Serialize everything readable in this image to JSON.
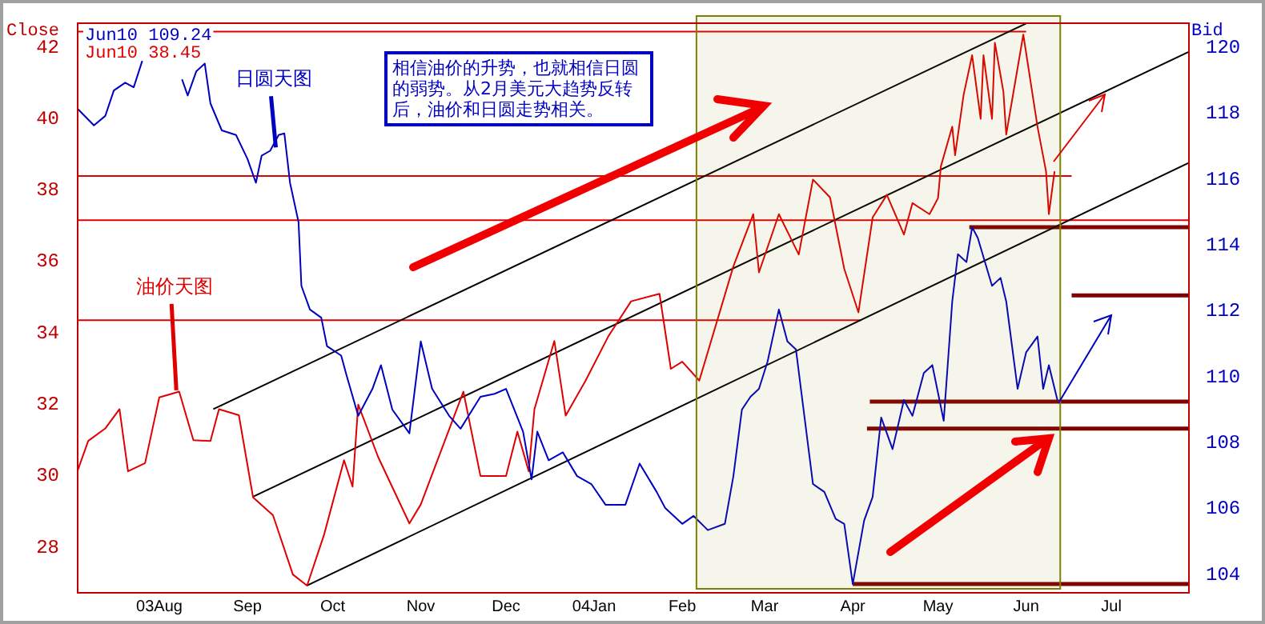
{
  "chart_data": {
    "type": "line",
    "ylabel": "Close",
    "y2label": "Bid",
    "legend": "top left",
    "xlim": [
      "2003-07-03",
      "2004-07-28"
    ],
    "xticks": [
      {
        "value": "2003-08-01",
        "label": "03Aug"
      },
      {
        "value": "2003-09-01",
        "label": "Sep"
      },
      {
        "value": "2003-10-01",
        "label": "Oct"
      },
      {
        "value": "2003-11-01",
        "label": "Nov"
      },
      {
        "value": "2003-12-01",
        "label": "Dec"
      },
      {
        "value": "2004-01-01",
        "label": "04Jan"
      },
      {
        "value": "2004-02-01",
        "label": "Feb"
      },
      {
        "value": "2004-03-01",
        "label": "Mar"
      },
      {
        "value": "2004-04-01",
        "label": "Apr"
      },
      {
        "value": "2004-05-01",
        "label": "May"
      },
      {
        "value": "2004-06-01",
        "label": "Jun"
      },
      {
        "value": "2004-07-01",
        "label": "Jul"
      }
    ],
    "ylim": [
      26.75,
      42.7
    ],
    "yticks": [
      28,
      30,
      32,
      34,
      36,
      38,
      40,
      42
    ],
    "y2lim": [
      103.47,
      120.77
    ],
    "y2ticks": [
      104,
      106,
      108,
      110,
      112,
      114,
      116,
      118,
      120
    ],
    "bands": [
      {
        "axis": "x",
        "from": "2004-02-06",
        "to": "2004-06-13",
        "color": "#808000"
      }
    ],
    "annotations": [
      {
        "text": "日圆天图",
        "x": "2003-09-11",
        "y": 39.2
      },
      {
        "text": "油价天图",
        "x": "2003-08-07",
        "y": 32.4
      },
      "相信油价的升势，也就相信日圆的弱势。从2月美元大趋势反转后，油价和日圆走势相关。"
    ],
    "series": [
      {
        "name": "Jun10 109.24",
        "color": "#0000c0",
        "axis": "y2",
        "x": [
          "2003-07-03",
          "2003-07-09",
          "2003-07-13",
          "2003-07-16",
          "2003-07-20",
          "2003-07-23",
          "2003-07-26",
          "2003-07-30",
          "2003-08-06",
          "2003-08-09",
          "2003-08-11",
          "2003-08-14",
          "2003-08-17",
          "2003-08-19",
          "2003-08-23",
          "2003-08-28",
          "2003-09-01",
          "2003-09-04",
          "2003-09-06",
          "2003-09-09",
          "2003-09-12",
          "2003-09-14",
          "2003-09-16",
          "2003-09-19",
          "2003-09-20",
          "2003-09-23",
          "2003-09-27",
          "2003-09-29",
          "2003-10-04",
          "2003-10-06",
          "2003-10-10",
          "2003-10-15",
          "2003-10-18",
          "2003-10-22",
          "2003-10-28",
          "2003-11-01",
          "2003-11-05",
          "2003-11-11",
          "2003-11-15",
          "2003-11-22",
          "2003-11-27",
          "2003-12-01",
          "2003-12-07",
          "2003-12-10",
          "2003-12-12",
          "2003-12-16",
          "2003-12-21",
          "2003-12-26",
          "2003-12-31",
          "2004-01-05",
          "2004-01-12",
          "2004-01-17",
          "2004-01-23",
          "2004-01-26",
          "2004-02-01",
          "2004-02-05",
          "2004-02-10",
          "2004-02-16",
          "2004-02-19",
          "2004-02-22",
          "2004-02-25",
          "2004-02-28",
          "2004-03-02",
          "2004-03-06",
          "2004-03-09",
          "2004-03-12",
          "2004-03-18",
          "2004-03-22",
          "2004-03-26",
          "2004-03-29",
          "2004-04-01",
          "2004-04-05",
          "2004-04-08",
          "2004-04-11",
          "2004-04-15",
          "2004-04-19",
          "2004-04-22",
          "2004-04-26",
          "2004-04-29",
          "2004-05-03",
          "2004-05-06",
          "2004-05-08",
          "2004-05-11",
          "2004-05-13",
          "2004-05-15",
          "2004-05-20",
          "2004-05-23",
          "2004-05-25",
          "2004-05-29",
          "2004-06-01",
          "2004-06-05",
          "2004-06-07",
          "2004-06-09",
          "2004-06-12"
        ],
        "values": [
          118.17,
          117.64,
          117.93,
          118.7,
          118.94,
          118.8,
          119.6,
          null,
          null,
          119.04,
          118.55,
          119.28,
          119.52,
          118.31,
          117.49,
          117.35,
          116.63,
          115.9,
          116.72,
          116.87,
          117.35,
          117.4,
          115.9,
          114.7,
          112.77,
          112.05,
          111.8,
          110.94,
          110.65,
          110.02,
          108.82,
          109.64,
          110.36,
          109.01,
          108.29,
          111.08,
          109.64,
          108.82,
          108.43,
          109.4,
          109.49,
          109.64,
          108.34,
          106.89,
          108.34,
          107.47,
          107.71,
          106.99,
          106.75,
          106.12,
          106.12,
          107.37,
          106.51,
          106.02,
          105.54,
          105.78,
          105.35,
          105.54,
          106.99,
          109.01,
          109.4,
          109.64,
          110.46,
          112.05,
          111.08,
          110.84,
          106.75,
          106.51,
          105.69,
          105.54,
          103.71,
          105.64,
          106.36,
          108.77,
          107.81,
          109.3,
          108.82,
          110.12,
          110.36,
          108.67,
          112.29,
          113.73,
          113.49,
          114.55,
          114.22,
          112.77,
          113.01,
          112.29,
          109.64,
          110.75,
          111.23,
          109.64,
          110.36,
          109.3
        ]
      },
      {
        "name": "Jun10 38.45",
        "color": "#e00000",
        "x": [
          "2003-07-03",
          "2003-07-07",
          "2003-07-13",
          "2003-07-18",
          "2003-07-21",
          "2003-07-27",
          "2003-08-01",
          "2003-08-08",
          "2003-08-13",
          "2003-08-19",
          "2003-08-22",
          "2003-08-29",
          "2003-09-03",
          "2003-09-10",
          "2003-09-17",
          "2003-09-22",
          "2003-09-28",
          "2003-10-05",
          "2003-10-08",
          "2003-10-10",
          "2003-10-17",
          "2003-10-28",
          "2003-11-01",
          "2003-11-16",
          "2003-11-22",
          "2003-12-01",
          "2003-12-05",
          "2003-12-09",
          "2003-12-11",
          "2003-12-18",
          "2003-12-22",
          "2003-12-29",
          "2004-01-06",
          "2004-01-14",
          "2004-01-24",
          "2004-01-28",
          "2004-02-01",
          "2004-02-07",
          "2004-02-19",
          "2004-02-26",
          "2004-02-28",
          "2004-03-06",
          "2004-03-13",
          "2004-03-18",
          "2004-03-24",
          "2004-03-29",
          "2004-04-03",
          "2004-04-08",
          "2004-04-13",
          "2004-04-19",
          "2004-04-22",
          "2004-04-28",
          "2004-05-01",
          "2004-05-02",
          "2004-05-06",
          "2004-05-07",
          "2004-05-10",
          "2004-05-13",
          "2004-05-16",
          "2004-05-17",
          "2004-05-20",
          "2004-05-21",
          "2004-05-24",
          "2004-05-25",
          "2004-05-31",
          "2004-06-05",
          "2004-06-08",
          "2004-06-09",
          "2004-06-11"
        ],
        "values": [
          30.09,
          30.98,
          31.33,
          31.87,
          30.13,
          30.36,
          32.2,
          32.36,
          31.0,
          30.98,
          31.87,
          31.7,
          29.4,
          28.9,
          27.24,
          26.93,
          28.36,
          30.44,
          29.7,
          32.0,
          30.53,
          28.67,
          29.2,
          32.36,
          30.0,
          30.0,
          31.24,
          30.13,
          31.87,
          33.78,
          31.69,
          32.67,
          33.91,
          34.89,
          35.1,
          33.0,
          33.2,
          32.67,
          35.87,
          37.33,
          35.7,
          37.33,
          36.2,
          38.3,
          37.8,
          35.8,
          34.58,
          37.24,
          37.87,
          36.76,
          37.64,
          37.33,
          37.78,
          38.67,
          39.78,
          38.98,
          40.67,
          41.78,
          40.0,
          41.78,
          40.0,
          42.13,
          40.76,
          39.56,
          42.36,
          39.78,
          38.53,
          37.33,
          38.53
        ]
      },
      {
        "color": "#000000",
        "x": [
          "2003-09-22",
          "2004-07-28"
        ],
        "values": [
          26.93,
          38.76
        ]
      },
      {
        "color": "#000000",
        "x": [
          "2003-09-03",
          "2004-07-28"
        ],
        "values": [
          29.42,
          41.87
        ]
      },
      {
        "color": "#000000",
        "x": [
          "2003-08-20",
          "2004-06-01"
        ],
        "values": [
          31.87,
          42.67
        ]
      },
      {
        "color": "#e00000",
        "x": [
          "2003-07-03",
          "2004-06-01"
        ],
        "values": [
          42.44,
          42.44
        ]
      },
      {
        "color": "#e00000",
        "x": [
          "2003-07-03",
          "2004-06-17"
        ],
        "values": [
          38.4,
          38.4
        ]
      },
      {
        "color": "#e00000",
        "x": [
          "2003-07-03",
          "2004-07-28"
        ],
        "values": [
          37.16,
          37.16
        ]
      },
      {
        "color": "#e00000",
        "x": [
          "2003-07-03",
          "2004-04-04"
        ],
        "values": [
          34.36,
          34.36
        ]
      },
      {
        "color": "#800000",
        "axis": "y2",
        "x": [
          "2004-05-12",
          "2004-07-28"
        ],
        "values": [
          114.55,
          114.55
        ]
      },
      {
        "color": "#800000",
        "axis": "y2",
        "x": [
          "2004-06-17",
          "2004-07-28"
        ],
        "values": [
          112.48,
          112.48
        ]
      },
      {
        "color": "#800000",
        "axis": "y2",
        "x": [
          "2004-04-07",
          "2004-07-28"
        ],
        "values": [
          109.25,
          109.25
        ]
      },
      {
        "color": "#800000",
        "axis": "y2",
        "x": [
          "2004-04-06",
          "2004-07-28"
        ],
        "values": [
          108.43,
          108.43
        ]
      },
      {
        "color": "#800000",
        "axis": "y2",
        "x": [
          "2004-04-01",
          "2004-07-28"
        ],
        "values": [
          103.71,
          103.71
        ]
      }
    ]
  }
}
